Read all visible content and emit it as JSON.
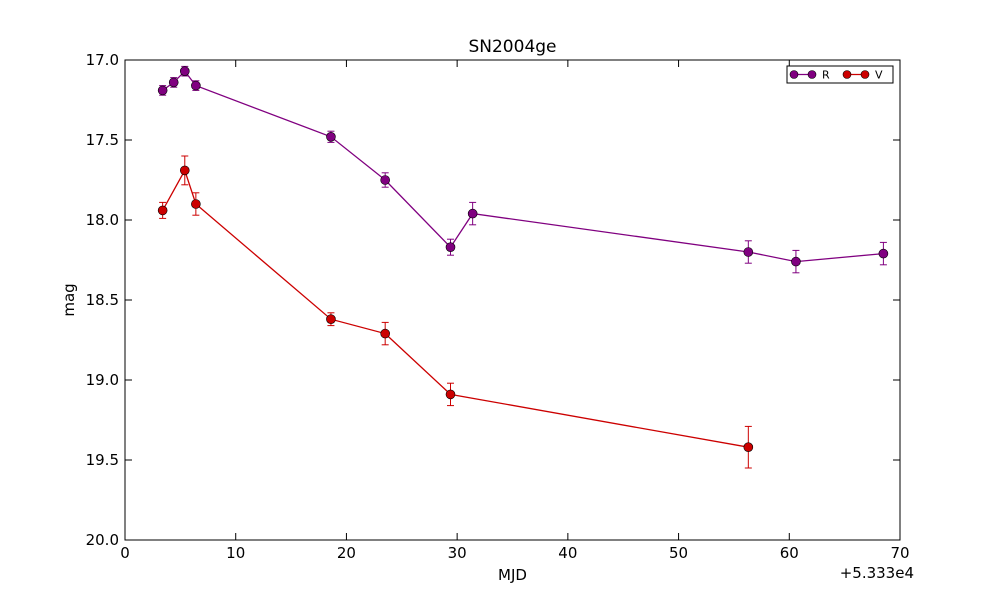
{
  "chart_data": {
    "type": "scatter",
    "title": "SN2004ge",
    "xlabel": "MJD",
    "ylabel": "mag",
    "x_offset_label": "+5.333e4",
    "xlim": [
      0,
      70
    ],
    "ylim": [
      20.0,
      17.0
    ],
    "y_inverted": true,
    "x_ticks": [
      0,
      10,
      20,
      30,
      40,
      50,
      60,
      70
    ],
    "x_tick_labels": [
      "0",
      "10",
      "20",
      "30",
      "40",
      "50",
      "60",
      "70"
    ],
    "y_ticks": [
      17.0,
      17.5,
      18.0,
      18.5,
      19.0,
      19.5,
      20.0
    ],
    "y_tick_labels": [
      "17.0",
      "17.5",
      "18.0",
      "18.5",
      "19.0",
      "19.5",
      "20.0"
    ],
    "grid": false,
    "legend_position": "top-right",
    "series": [
      {
        "name": "R",
        "color": "#800080",
        "x": [
          3.4,
          4.4,
          5.4,
          6.4,
          18.6,
          23.5,
          29.4,
          31.4,
          56.3,
          60.6,
          68.5
        ],
        "y": [
          17.19,
          17.14,
          17.07,
          17.16,
          17.48,
          17.75,
          18.17,
          17.96,
          18.2,
          18.26,
          18.21
        ],
        "yerr": [
          0.03,
          0.03,
          0.03,
          0.03,
          0.035,
          0.045,
          0.05,
          0.07,
          0.07,
          0.07,
          0.07
        ]
      },
      {
        "name": "V",
        "color": "#cc0000",
        "x": [
          3.4,
          5.4,
          6.4,
          18.6,
          23.5,
          29.4,
          56.3
        ],
        "y": [
          17.94,
          17.69,
          17.9,
          18.62,
          18.71,
          19.09,
          19.42
        ],
        "yerr": [
          0.05,
          0.09,
          0.07,
          0.04,
          0.07,
          0.07,
          0.13
        ]
      }
    ]
  }
}
